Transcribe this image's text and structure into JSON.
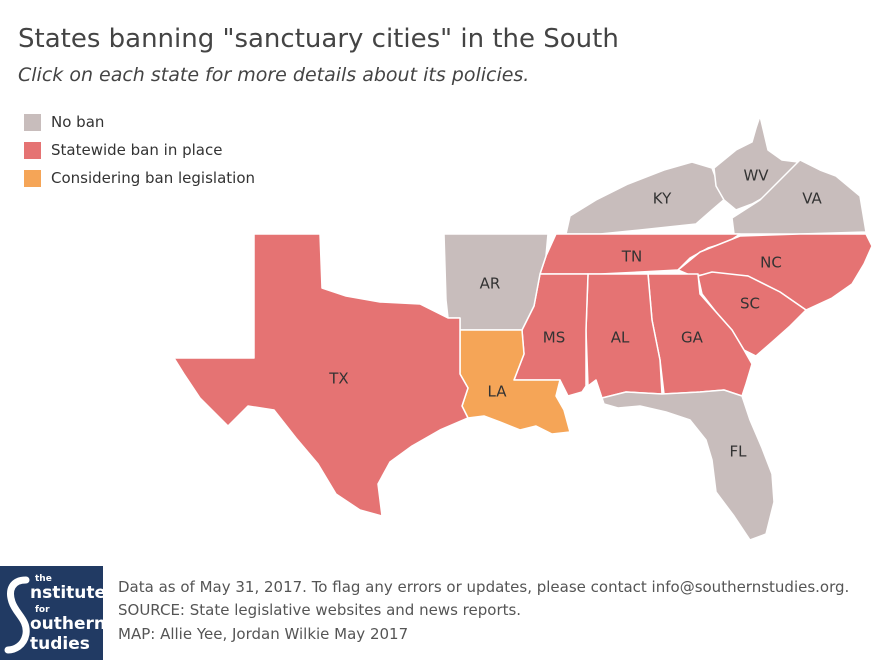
{
  "title": "States banning \"sanctuary cities\" in the South",
  "subtitle": "Click on each state for more details about its policies.",
  "legend": [
    {
      "label": "No ban",
      "color": "#c8bdbc"
    },
    {
      "label": "Statewide ban in place",
      "color": "#e57373"
    },
    {
      "label": "Considering ban legislation",
      "color": "#f5a557"
    }
  ],
  "states": {
    "KY": {
      "label": "KY",
      "status": "No ban"
    },
    "WV": {
      "label": "WV",
      "status": "No ban"
    },
    "VA": {
      "label": "VA",
      "status": "No ban"
    },
    "AR": {
      "label": "AR",
      "status": "No ban"
    },
    "FL": {
      "label": "FL",
      "status": "No ban"
    },
    "TN": {
      "label": "TN",
      "status": "Statewide ban in place"
    },
    "NC": {
      "label": "NC",
      "status": "Statewide ban in place"
    },
    "SC": {
      "label": "SC",
      "status": "Statewide ban in place"
    },
    "GA": {
      "label": "GA",
      "status": "Statewide ban in place"
    },
    "AL": {
      "label": "AL",
      "status": "Statewide ban in place"
    },
    "MS": {
      "label": "MS",
      "status": "Statewide ban in place"
    },
    "TX": {
      "label": "TX",
      "status": "Statewide ban in place"
    },
    "LA": {
      "label": "LA",
      "status": "Considering ban legislation"
    }
  },
  "footer": {
    "logo_lines": [
      "the",
      "nstitute",
      "for",
      "outhern",
      "tudies"
    ],
    "line1": "Data as of May 31, 2017. To flag any errors or updates, please contact info@southernstudies.org.",
    "line2": "SOURCE: State legislative websites and news reports.",
    "line3": "MAP: Allie Yee, Jordan Wilkie     May 2017"
  }
}
